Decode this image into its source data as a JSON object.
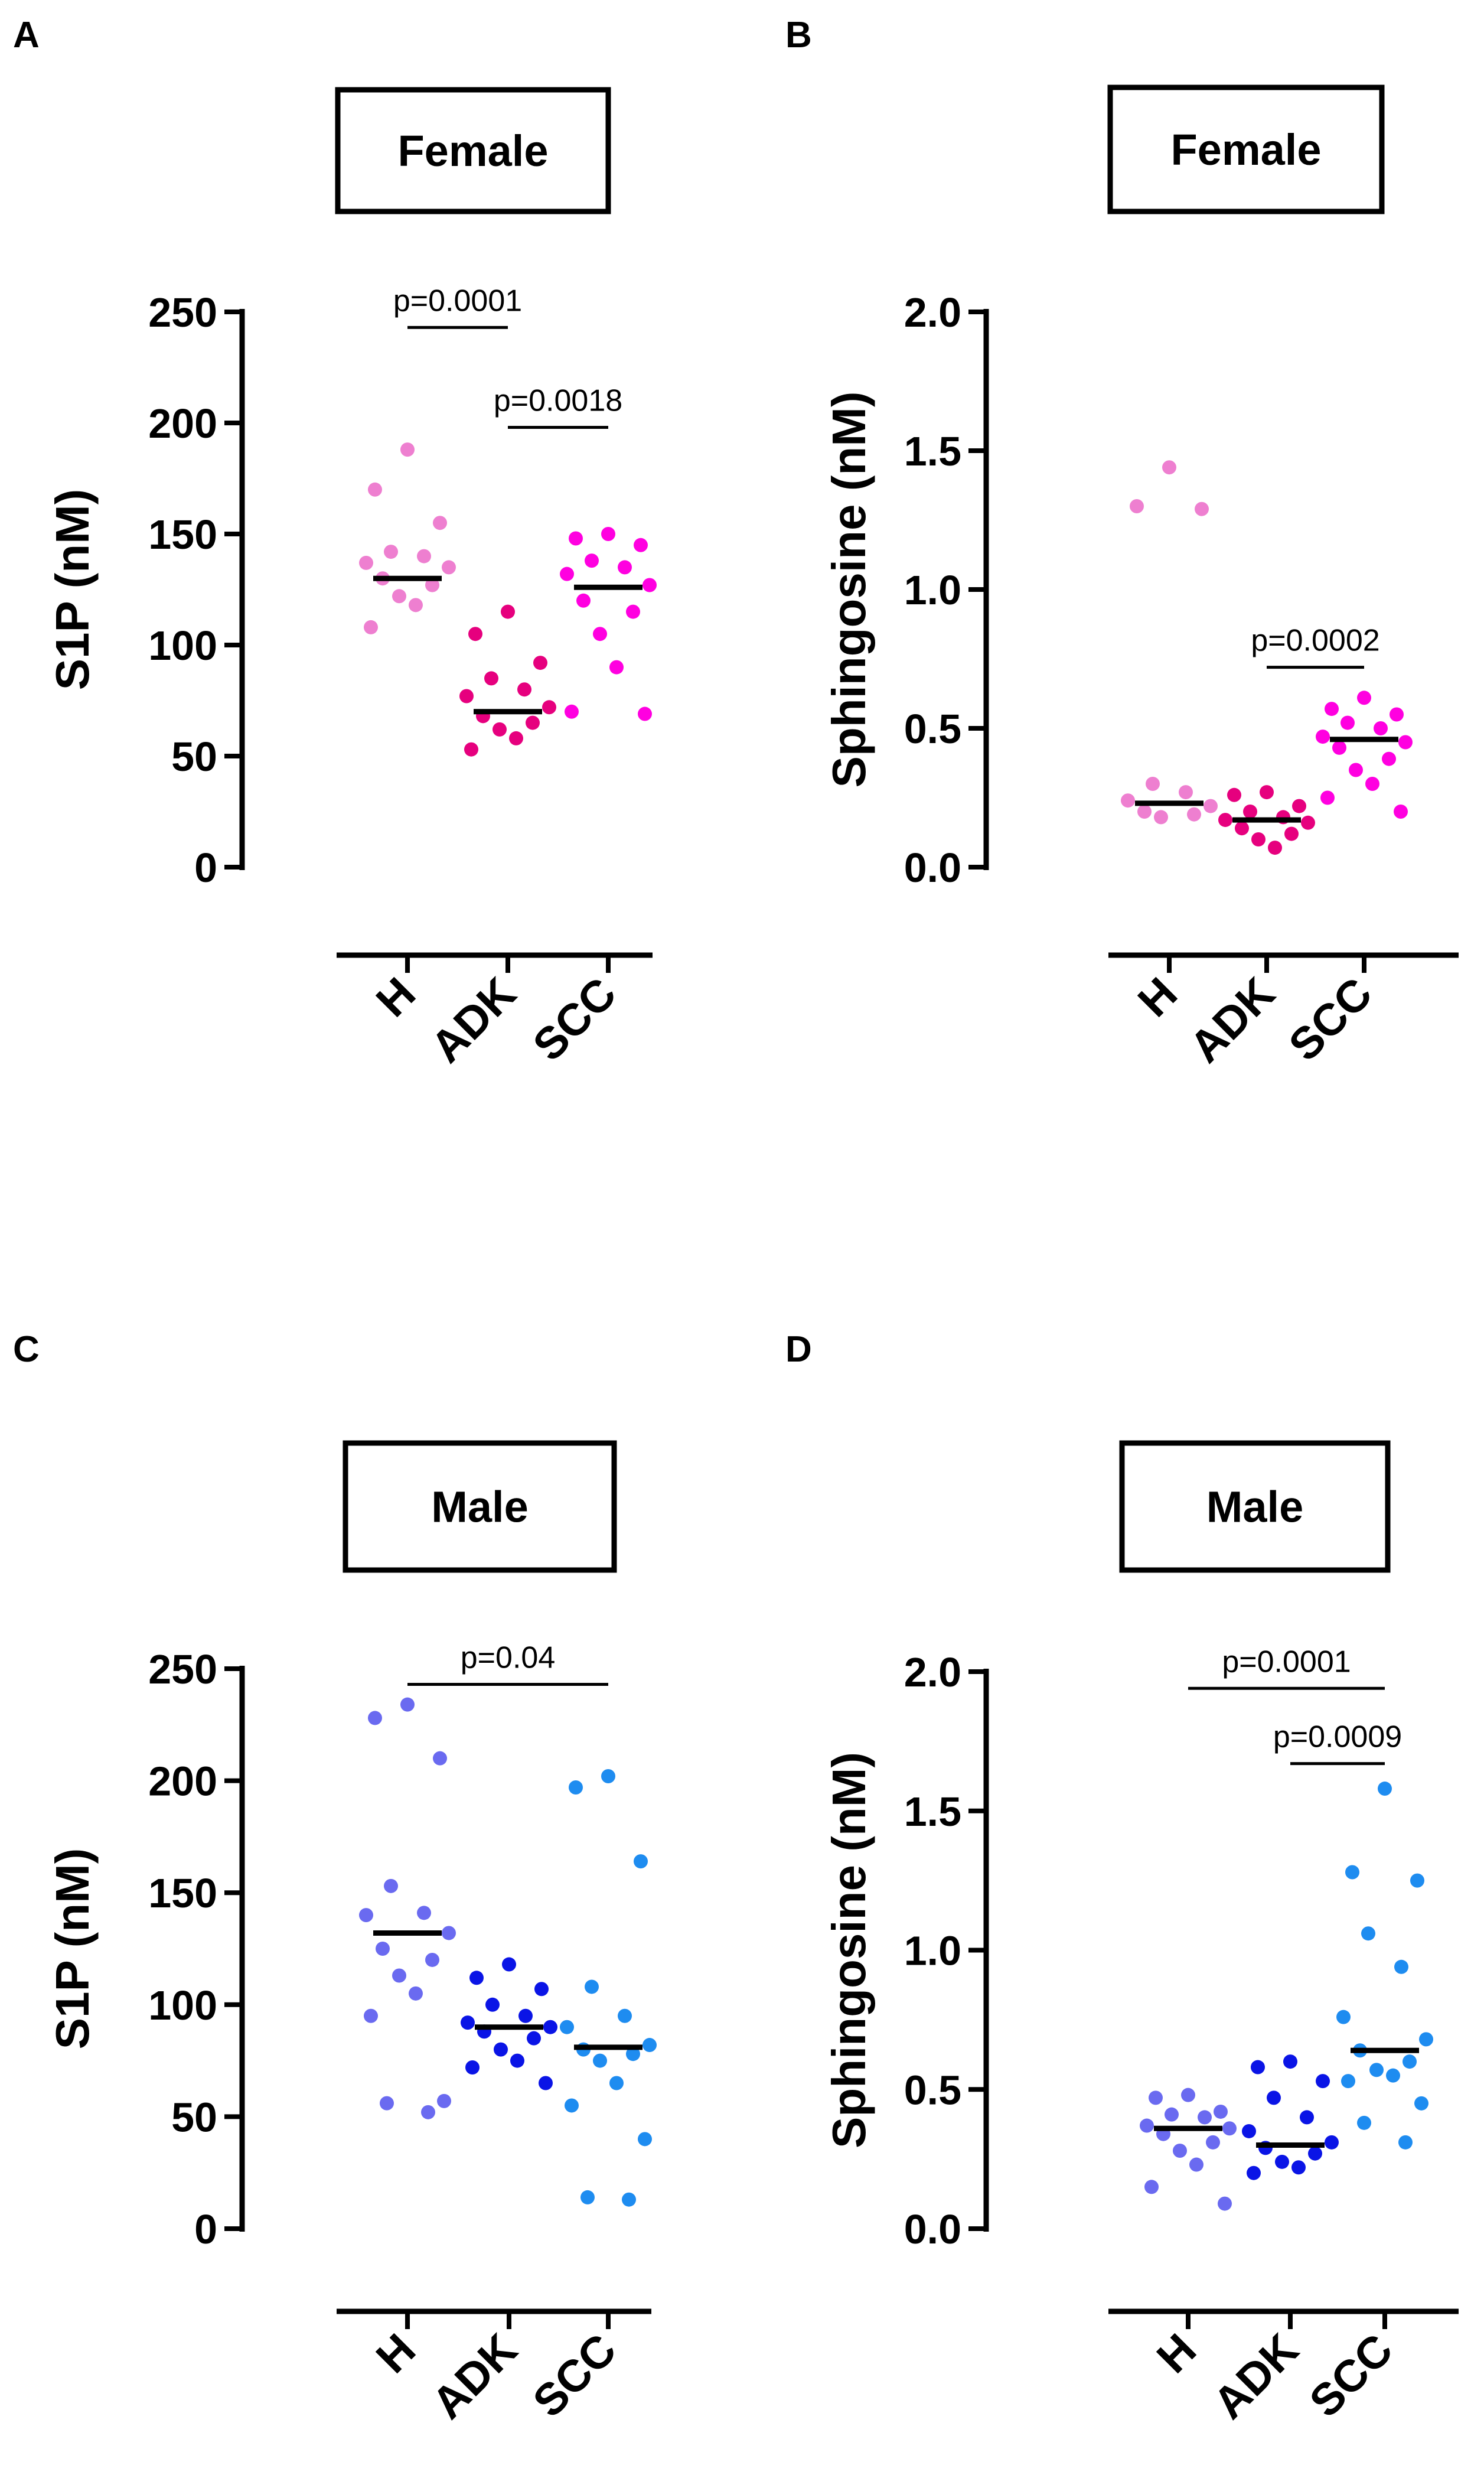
{
  "chart_data": [
    {
      "type": "scatter",
      "panel_label": "A",
      "box_title": "Female",
      "ylabel": "S1P (nM)",
      "ylim": [
        0,
        250
      ],
      "yticks": [
        0,
        50,
        100,
        150,
        200,
        250
      ],
      "categories": [
        "H",
        "ADK",
        "SCC"
      ],
      "colors": [
        "#ee7fd0",
        "#e6007e",
        "#ff00e0"
      ],
      "series": [
        {
          "category": "H",
          "values": [
            188,
            170,
            155,
            142,
            140,
            137,
            135,
            130,
            127,
            122,
            118,
            108
          ],
          "median": 130
        },
        {
          "category": "ADK",
          "values": [
            115,
            105,
            92,
            85,
            80,
            77,
            72,
            68,
            65,
            62,
            58,
            53
          ],
          "median": 70
        },
        {
          "category": "SCC",
          "values": [
            150,
            148,
            145,
            138,
            135,
            132,
            127,
            120,
            115,
            105,
            90,
            70,
            69
          ],
          "median": 126
        }
      ],
      "comparisons": [
        {
          "label": "p=0.0001",
          "from": "H",
          "to": "ADK",
          "y": 243
        },
        {
          "label": "p=0.0018",
          "from": "ADK",
          "to": "SCC",
          "y": 198
        }
      ]
    },
    {
      "type": "scatter",
      "panel_label": "B",
      "box_title": "Female",
      "ylabel": "Sphingosine (nM)",
      "ylim": [
        0,
        2.0
      ],
      "yticks": [
        "0.0",
        "0.5",
        "1.0",
        "1.5",
        "2.0"
      ],
      "categories": [
        "H",
        "ADK",
        "SCC"
      ],
      "colors": [
        "#ee7fd0",
        "#e6007e",
        "#ff00e0"
      ],
      "series": [
        {
          "category": "H",
          "values": [
            1.44,
            1.3,
            1.29,
            0.3,
            0.27,
            0.24,
            0.22,
            0.2,
            0.19,
            0.18
          ],
          "median": 0.23
        },
        {
          "category": "ADK",
          "values": [
            0.27,
            0.26,
            0.22,
            0.2,
            0.18,
            0.17,
            0.16,
            0.14,
            0.12,
            0.1,
            0.07
          ],
          "median": 0.17
        },
        {
          "category": "SCC",
          "values": [
            0.61,
            0.57,
            0.55,
            0.52,
            0.5,
            0.47,
            0.45,
            0.43,
            0.39,
            0.35,
            0.3,
            0.25,
            0.2
          ],
          "median": 0.46
        }
      ],
      "comparisons": [
        {
          "label": "p=0.0002",
          "from": "ADK",
          "to": "SCC",
          "y": 0.72
        }
      ]
    },
    {
      "type": "scatter",
      "panel_label": "C",
      "box_title": "Male",
      "ylabel": "S1P (nM)",
      "ylim": [
        0,
        250
      ],
      "yticks": [
        0,
        50,
        100,
        150,
        200,
        250
      ],
      "categories": [
        "H",
        "ADK",
        "SCC"
      ],
      "colors": [
        "#6a6af0",
        "#0a14e6",
        "#1e8cf0"
      ],
      "series": [
        {
          "category": "H",
          "values": [
            234,
            228,
            210,
            153,
            141,
            140,
            132,
            125,
            120,
            113,
            105,
            95,
            57,
            56,
            52
          ],
          "median": 132
        },
        {
          "category": "ADK",
          "values": [
            118,
            112,
            107,
            100,
            95,
            92,
            90,
            88,
            85,
            80,
            75,
            72,
            65
          ],
          "median": 90
        },
        {
          "category": "SCC",
          "values": [
            202,
            197,
            164,
            108,
            95,
            90,
            82,
            80,
            78,
            75,
            65,
            55,
            40,
            14,
            13
          ],
          "median": 81
        }
      ],
      "comparisons": [
        {
          "label": "p=0.04",
          "from": "H",
          "to": "SCC",
          "y": 243
        }
      ]
    },
    {
      "type": "scatter",
      "panel_label": "D",
      "box_title": "Male",
      "ylabel": "Sphingosine (nM)",
      "ylim": [
        0,
        2.0
      ],
      "yticks": [
        "0.0",
        "0.5",
        "1.0",
        "1.5",
        "2.0"
      ],
      "categories": [
        "H",
        "ADK",
        "SCC"
      ],
      "colors": [
        "#6a6af0",
        "#0a14e6",
        "#1e8cf0"
      ],
      "series": [
        {
          "category": "H",
          "values": [
            0.48,
            0.47,
            0.42,
            0.41,
            0.4,
            0.37,
            0.36,
            0.34,
            0.31,
            0.28,
            0.23,
            0.15,
            0.09
          ],
          "median": 0.36
        },
        {
          "category": "ADK",
          "values": [
            0.6,
            0.58,
            0.53,
            0.47,
            0.4,
            0.35,
            0.31,
            0.29,
            0.27,
            0.24,
            0.22,
            0.2
          ],
          "median": 0.3
        },
        {
          "category": "SCC",
          "values": [
            1.58,
            1.28,
            1.25,
            1.06,
            0.94,
            0.76,
            0.68,
            0.64,
            0.6,
            0.57,
            0.55,
            0.53,
            0.45,
            0.38,
            0.31
          ],
          "median": 0.64
        }
      ],
      "comparisons": [
        {
          "label": "p=0.0001",
          "from": "H",
          "to": "SCC",
          "y": 1.94
        },
        {
          "label": "p=0.0009",
          "from": "ADK",
          "to": "SCC",
          "y": 1.67
        }
      ]
    }
  ]
}
